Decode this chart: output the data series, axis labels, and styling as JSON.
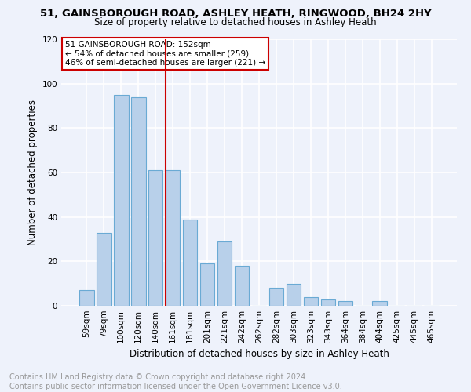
{
  "title": "51, GAINSBOROUGH ROAD, ASHLEY HEATH, RINGWOOD, BH24 2HY",
  "subtitle": "Size of property relative to detached houses in Ashley Heath",
  "xlabel": "Distribution of detached houses by size in Ashley Heath",
  "ylabel": "Number of detached properties",
  "categories": [
    "59sqm",
    "79sqm",
    "100sqm",
    "120sqm",
    "140sqm",
    "161sqm",
    "181sqm",
    "201sqm",
    "221sqm",
    "242sqm",
    "262sqm",
    "282sqm",
    "303sqm",
    "323sqm",
    "343sqm",
    "364sqm",
    "384sqm",
    "404sqm",
    "425sqm",
    "445sqm",
    "465sqm"
  ],
  "values": [
    7,
    33,
    95,
    94,
    61,
    61,
    39,
    19,
    29,
    18,
    0,
    8,
    10,
    4,
    3,
    2,
    0,
    2,
    0,
    0,
    0
  ],
  "bar_color": "#b8d0ea",
  "bar_edge_color": "#6aaad4",
  "vline_x_index": 5,
  "vline_color": "#cc0000",
  "annotation_text": "51 GAINSBOROUGH ROAD: 152sqm\n← 54% of detached houses are smaller (259)\n46% of semi-detached houses are larger (221) →",
  "annotation_box_color": "#ffffff",
  "annotation_box_edge": "#cc0000",
  "ylim": [
    0,
    120
  ],
  "yticks": [
    0,
    20,
    40,
    60,
    80,
    100,
    120
  ],
  "footnote": "Contains HM Land Registry data © Crown copyright and database right 2024.\nContains public sector information licensed under the Open Government Licence v3.0.",
  "bg_color": "#eef2fb",
  "plot_bg_color": "#eef2fb",
  "grid_color": "#ffffff",
  "title_fontsize": 9.5,
  "subtitle_fontsize": 8.5,
  "label_fontsize": 8.5,
  "tick_fontsize": 7.5,
  "footnote_fontsize": 7,
  "footnote_color": "#999999"
}
